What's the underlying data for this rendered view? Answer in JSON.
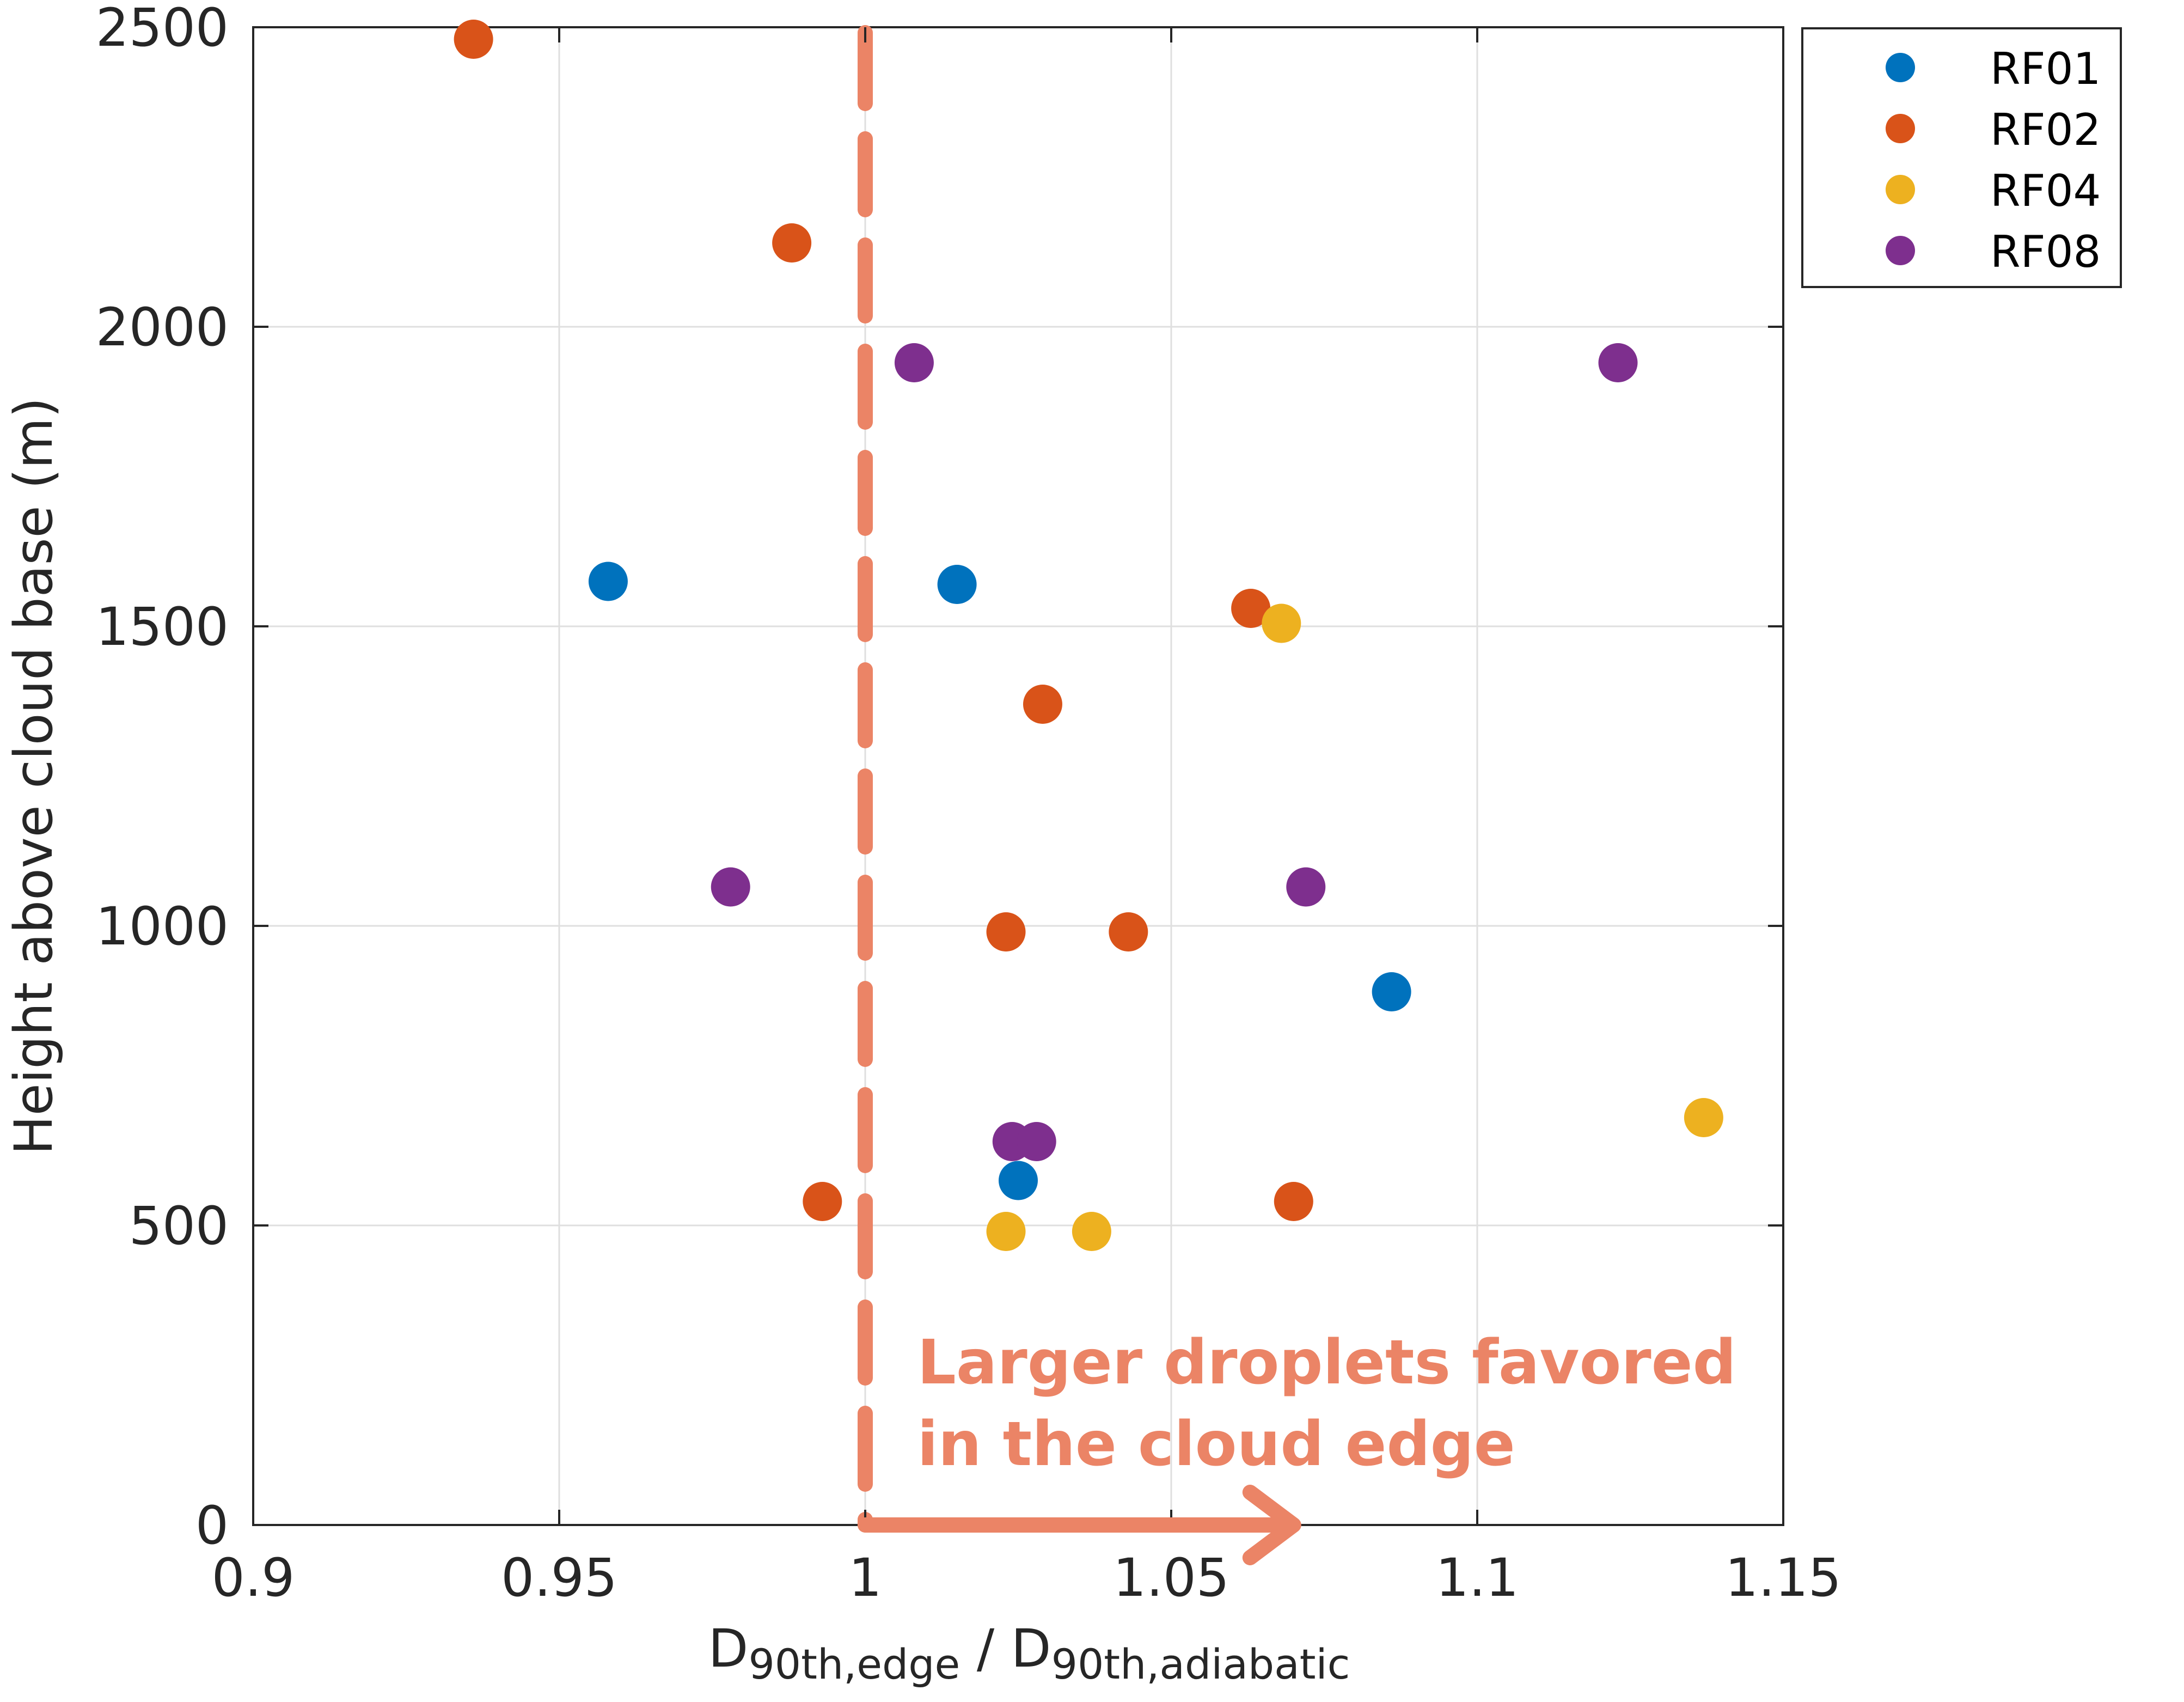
{
  "chart_data": {
    "type": "scatter",
    "xlabel": {
      "main": "D",
      "sub1": "90th,edge",
      "sep": " / D",
      "sub2": "90th,adiabatic"
    },
    "ylabel": "Height above cloud base (m)",
    "xlim": [
      0.9,
      1.15
    ],
    "ylim": [
      0,
      2500
    ],
    "xticks": [
      0.9,
      0.95,
      1,
      1.05,
      1.1,
      1.15
    ],
    "xtick_labels": [
      "0.9",
      "0.95",
      "1",
      "1.05",
      "1.1",
      "1.15"
    ],
    "yticks": [
      0,
      500,
      1000,
      1500,
      2000,
      2500
    ],
    "ytick_labels": [
      "0",
      "500",
      "1000",
      "1500",
      "2000",
      "2500"
    ],
    "grid": true,
    "legend_position": "top-right",
    "series": [
      {
        "name": "RF01",
        "color": "#0072BD",
        "points": [
          [
            0.958,
            1575
          ],
          [
            1.015,
            1570
          ],
          [
            1.086,
            890
          ],
          [
            1.025,
            575
          ]
        ]
      },
      {
        "name": "RF02",
        "color": "#D95319",
        "points": [
          [
            0.936,
            2480
          ],
          [
            0.988,
            2140
          ],
          [
            1.063,
            1530
          ],
          [
            1.029,
            1370
          ],
          [
            1.023,
            990
          ],
          [
            1.043,
            990
          ],
          [
            0.993,
            540
          ],
          [
            1.07,
            540
          ]
        ]
      },
      {
        "name": "RF04",
        "color": "#EDB120",
        "points": [
          [
            1.068,
            1505
          ],
          [
            1.137,
            680
          ],
          [
            1.023,
            490
          ],
          [
            1.037,
            490
          ]
        ]
      },
      {
        "name": "RF08",
        "color": "#7E2F8E",
        "points": [
          [
            1.008,
            1940
          ],
          [
            1.123,
            1940
          ],
          [
            0.978,
            1065
          ],
          [
            1.072,
            1065
          ],
          [
            1.024,
            640
          ],
          [
            1.028,
            640
          ]
        ]
      }
    ],
    "reference_line": {
      "x": 1,
      "style": "dashed",
      "color": "#EB8466"
    },
    "annotation": {
      "lines": [
        "Larger droplets favored",
        "in the cloud edge"
      ],
      "color": "#EB8466",
      "arrow": {
        "from_x": 1,
        "to_x": 1.07,
        "y": 0
      }
    }
  }
}
